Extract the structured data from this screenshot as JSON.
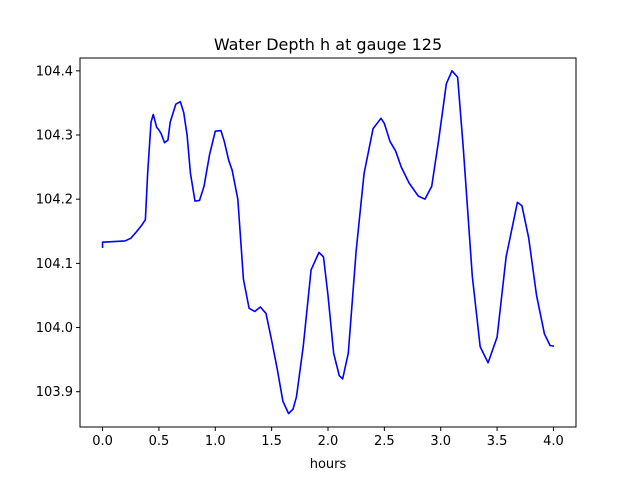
{
  "chart_data": {
    "type": "line",
    "title": "Water Depth h at gauge 125",
    "xlabel": "hours",
    "ylabel": "",
    "xlim": [
      -0.2,
      4.2
    ],
    "ylim": [
      103.845,
      104.42
    ],
    "xticks": [
      0.0,
      0.5,
      1.0,
      1.5,
      2.0,
      2.5,
      3.0,
      3.5,
      4.0
    ],
    "xtick_labels": [
      "0.0",
      "0.5",
      "1.0",
      "1.5",
      "2.0",
      "2.5",
      "3.0",
      "3.5",
      "4.0"
    ],
    "yticks": [
      103.9,
      104.0,
      104.1,
      104.2,
      104.3,
      104.4
    ],
    "ytick_labels": [
      "103.9",
      "104.0",
      "104.1",
      "104.2",
      "104.3",
      "104.4"
    ],
    "grid": false,
    "legend": "none",
    "series": [
      {
        "color": "#0000ff",
        "x": [
          0.0,
          0.0,
          0.1,
          0.2,
          0.25,
          0.3,
          0.35,
          0.38,
          0.4,
          0.43,
          0.45,
          0.48,
          0.5,
          0.52,
          0.55,
          0.58,
          0.6,
          0.65,
          0.69,
          0.72,
          0.75,
          0.78,
          0.82,
          0.86,
          0.9,
          0.95,
          1.0,
          1.05,
          1.08,
          1.12,
          1.15,
          1.2,
          1.25,
          1.3,
          1.35,
          1.4,
          1.45,
          1.5,
          1.55,
          1.6,
          1.65,
          1.69,
          1.72,
          1.78,
          1.85,
          1.92,
          1.96,
          2.0,
          2.05,
          2.1,
          2.13,
          2.18,
          2.25,
          2.32,
          2.4,
          2.47,
          2.5,
          2.55,
          2.6,
          2.65,
          2.72,
          2.8,
          2.86,
          2.92,
          2.98,
          3.05,
          3.1,
          3.15,
          3.2,
          3.28,
          3.35,
          3.42,
          3.5,
          3.58,
          3.68,
          3.72,
          3.78,
          3.85,
          3.92,
          3.97,
          4.0
        ],
        "y": [
          104.125,
          104.133,
          104.134,
          104.135,
          104.139,
          104.149,
          104.16,
          104.168,
          104.24,
          104.32,
          104.332,
          104.312,
          104.308,
          104.302,
          104.288,
          104.292,
          104.32,
          104.348,
          104.352,
          104.335,
          104.3,
          104.24,
          104.197,
          104.198,
          104.22,
          104.27,
          104.306,
          104.307,
          104.29,
          104.26,
          104.245,
          104.2,
          104.075,
          104.03,
          104.025,
          104.032,
          104.022,
          103.98,
          103.935,
          103.885,
          103.866,
          103.873,
          103.892,
          103.97,
          104.09,
          104.117,
          104.11,
          104.05,
          103.96,
          103.925,
          103.92,
          103.96,
          104.12,
          104.24,
          104.31,
          104.326,
          104.318,
          104.29,
          104.275,
          104.25,
          104.225,
          104.205,
          104.2,
          104.22,
          104.29,
          104.38,
          104.4,
          104.39,
          104.28,
          104.08,
          103.97,
          103.945,
          103.985,
          104.11,
          104.195,
          104.19,
          104.14,
          104.05,
          103.99,
          103.972,
          103.971
        ]
      }
    ]
  }
}
